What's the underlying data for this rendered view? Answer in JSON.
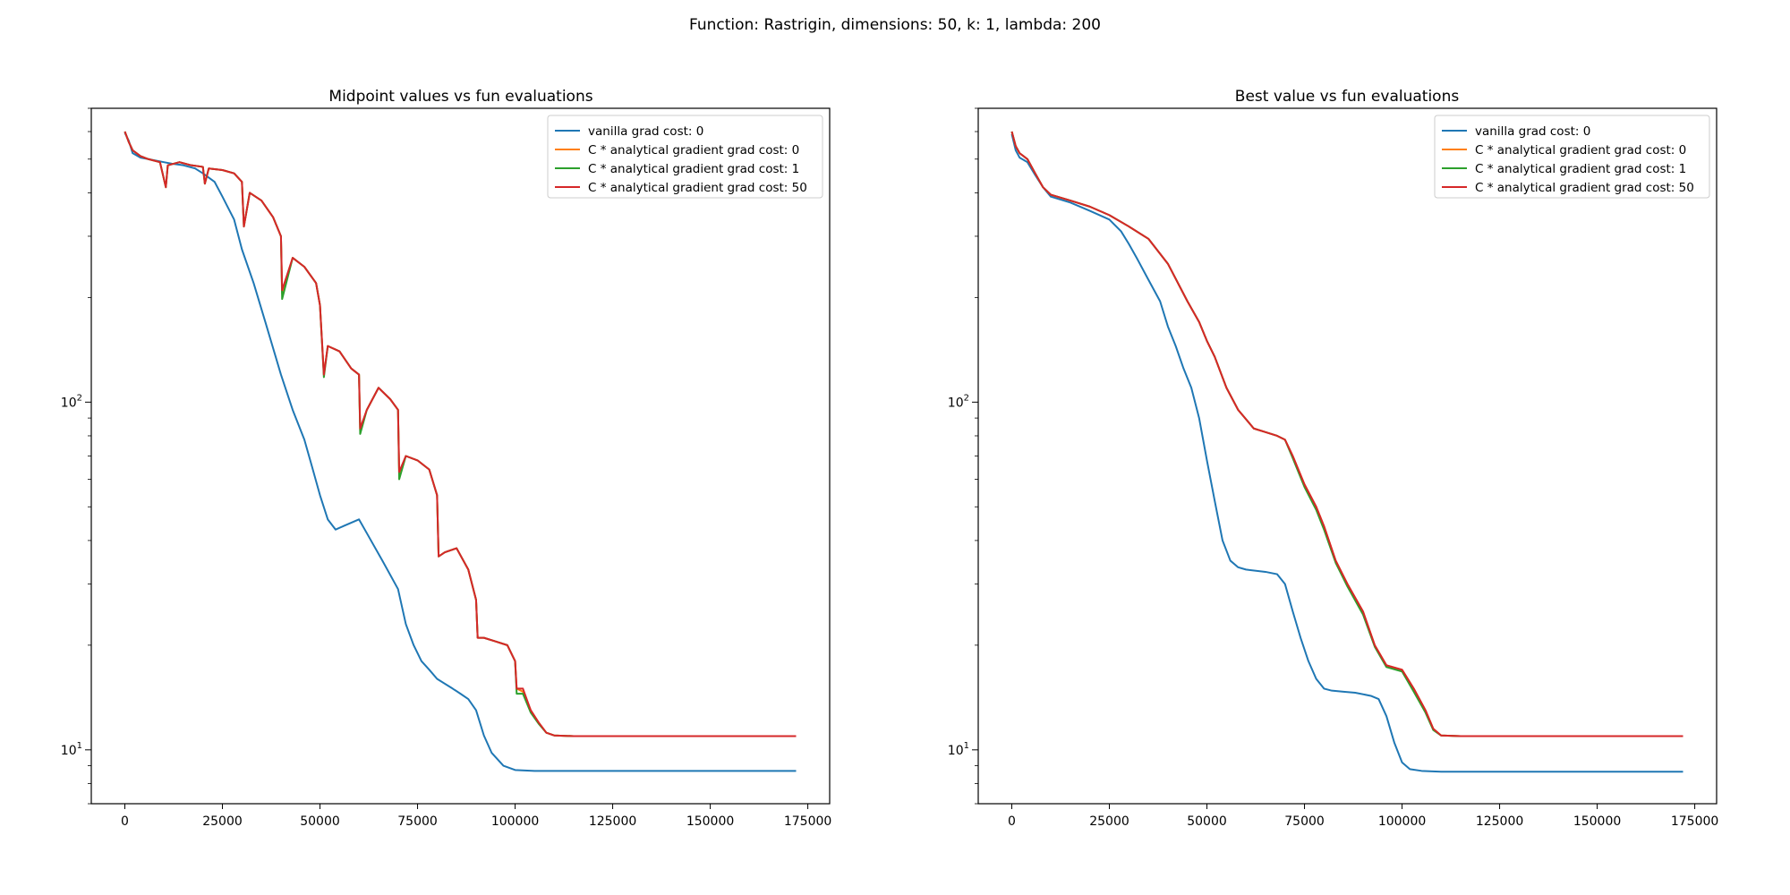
{
  "figure": {
    "suptitle": "Function: Rastrigin, dimensions: 50, k: 1, lambda: 200"
  },
  "chart_data": [
    {
      "type": "line",
      "title": "Midpoint values vs fun evaluations",
      "xlabel": "",
      "ylabel": "",
      "xlim": [
        -8600,
        180600
      ],
      "ylim": [
        7,
        700
      ],
      "yscale": "log",
      "x_ticks": [
        0,
        25000,
        50000,
        75000,
        100000,
        125000,
        150000,
        175000
      ],
      "x_tick_labels": [
        "0",
        "25000",
        "50000",
        "75000",
        "100000",
        "125000",
        "150000",
        "175000"
      ],
      "y_ticks": [
        10,
        100
      ],
      "y_tick_labels": [
        "10^1",
        "10^2"
      ],
      "legend_position": "top-right",
      "grid": false,
      "series": [
        {
          "name": "vanilla grad cost: 0",
          "color": "#1f77b4",
          "x": [
            0,
            1000,
            2000,
            4000,
            6000,
            8000,
            10000,
            12000,
            15000,
            18000,
            20000,
            23000,
            25000,
            28000,
            30000,
            33000,
            36000,
            40000,
            43000,
            46000,
            48000,
            50000,
            52000,
            54000,
            56000,
            60000,
            62000,
            66000,
            70000,
            72000,
            74000,
            76000,
            78000,
            80000,
            84000,
            86000,
            88000,
            90000,
            92000,
            94000,
            97000,
            100000,
            105000,
            110000,
            125000,
            150000,
            172000
          ],
          "y": [
            595,
            565,
            520,
            505,
            500,
            495,
            490,
            485,
            480,
            470,
            455,
            430,
            390,
            335,
            275,
            220,
            170,
            120,
            95,
            78,
            65,
            54,
            46,
            43,
            44,
            46,
            42,
            35,
            29,
            23,
            20,
            18,
            17,
            16,
            15,
            14.5,
            14,
            13,
            11,
            9.8,
            9.0,
            8.75,
            8.7,
            8.7,
            8.7,
            8.7,
            8.7
          ]
        },
        {
          "name": "C * analytical gradient grad cost: 0",
          "color": "#ff7f0e",
          "x": [
            0,
            1000,
            2000,
            4000,
            6000,
            9000,
            10500,
            11000,
            14000,
            17000,
            20000,
            20500,
            21500,
            25000,
            28000,
            30000,
            30500,
            32000,
            35000,
            38000,
            40000,
            40300,
            43000,
            46000,
            49000,
            50000,
            51000,
            52000,
            55000,
            58000,
            60000,
            60300,
            62000,
            65000,
            68000,
            70000,
            70300,
            72000,
            75000,
            78000,
            80000,
            80400,
            82000,
            85000,
            88000,
            90000,
            90400,
            92000,
            95000,
            98000,
            100000,
            100400,
            102000,
            104000,
            106000,
            108000,
            110000,
            115000,
            125000,
            150000,
            172000
          ],
          "y": [
            600,
            560,
            530,
            510,
            500,
            490,
            415,
            480,
            490,
            480,
            475,
            425,
            470,
            465,
            455,
            430,
            320,
            400,
            380,
            340,
            300,
            205,
            260,
            245,
            220,
            190,
            120,
            145,
            140,
            125,
            120,
            83,
            95,
            110,
            102,
            95,
            62,
            70,
            68,
            64,
            54,
            36,
            37,
            38,
            33,
            27,
            21,
            21,
            20.5,
            20,
            18,
            15,
            14.7,
            13,
            12,
            11.2,
            11.0,
            10.95,
            10.95,
            10.95,
            10.95
          ]
        },
        {
          "name": "C * analytical gradient grad cost: 1",
          "color": "#2ca02c",
          "x": [
            0,
            1000,
            2000,
            4000,
            6000,
            9000,
            10500,
            11000,
            14000,
            17000,
            20000,
            20500,
            21500,
            25000,
            28000,
            30000,
            30500,
            32000,
            35000,
            38000,
            40000,
            40300,
            43000,
            46000,
            49000,
            50000,
            51000,
            52000,
            55000,
            58000,
            60000,
            60300,
            62000,
            65000,
            68000,
            70000,
            70300,
            72000,
            75000,
            78000,
            80000,
            80400,
            82000,
            85000,
            88000,
            90000,
            90400,
            92000,
            95000,
            98000,
            100000,
            100400,
            102000,
            104000,
            106000,
            108000,
            110000,
            115000,
            125000,
            150000,
            172000
          ],
          "y": [
            600,
            560,
            530,
            510,
            500,
            490,
            415,
            480,
            490,
            480,
            475,
            425,
            470,
            465,
            455,
            430,
            320,
            400,
            380,
            340,
            300,
            198,
            260,
            245,
            220,
            190,
            118,
            145,
            140,
            125,
            120,
            81,
            95,
            110,
            102,
            95,
            60,
            70,
            68,
            64,
            54,
            36,
            37,
            38,
            33,
            27,
            21,
            21,
            20.5,
            20,
            18,
            14.5,
            14.5,
            12.8,
            11.9,
            11.2,
            11.0,
            10.95,
            10.95,
            10.95,
            10.95
          ]
        },
        {
          "name": "C * analytical gradient grad cost: 50",
          "color": "#d62728",
          "x": [
            0,
            1000,
            2000,
            4000,
            6000,
            9000,
            10500,
            11000,
            14000,
            17000,
            20000,
            20500,
            21500,
            25000,
            28000,
            30000,
            30500,
            32000,
            35000,
            38000,
            40000,
            40300,
            43000,
            46000,
            49000,
            50000,
            51000,
            52000,
            55000,
            58000,
            60000,
            60300,
            62000,
            65000,
            68000,
            70000,
            70300,
            72000,
            75000,
            78000,
            80000,
            80400,
            82000,
            85000,
            88000,
            90000,
            90400,
            92000,
            95000,
            98000,
            100000,
            100400,
            102000,
            104000,
            106000,
            108000,
            110000,
            115000,
            125000,
            150000,
            172000
          ],
          "y": [
            600,
            560,
            530,
            510,
            500,
            490,
            415,
            480,
            490,
            480,
            475,
            425,
            470,
            465,
            455,
            430,
            320,
            400,
            380,
            340,
            300,
            210,
            260,
            245,
            220,
            190,
            120,
            145,
            140,
            125,
            120,
            84,
            95,
            110,
            102,
            95,
            63,
            70,
            68,
            64,
            54,
            36,
            37,
            38,
            33,
            27,
            21,
            21,
            20.5,
            20,
            18,
            15,
            15,
            13,
            12,
            11.2,
            11.0,
            10.95,
            10.95,
            10.95,
            10.95
          ]
        }
      ]
    },
    {
      "type": "line",
      "title": "Best value vs fun evaluations",
      "xlabel": "",
      "ylabel": "",
      "xlim": [
        -8600,
        180600
      ],
      "ylim": [
        7,
        700
      ],
      "yscale": "log",
      "x_ticks": [
        0,
        25000,
        50000,
        75000,
        100000,
        125000,
        150000,
        175000
      ],
      "x_tick_labels": [
        "0",
        "25000",
        "50000",
        "75000",
        "100000",
        "125000",
        "150000",
        "175000"
      ],
      "y_ticks": [
        10,
        100
      ],
      "y_tick_labels": [
        "10^1",
        "10^2"
      ],
      "legend_position": "top-right",
      "grid": false,
      "series": [
        {
          "name": "vanilla grad cost: 0",
          "color": "#1f77b4",
          "x": [
            0,
            1000,
            2000,
            4000,
            6000,
            8000,
            10000,
            15000,
            20000,
            25000,
            28000,
            30000,
            32000,
            35000,
            38000,
            40000,
            42000,
            44000,
            46000,
            48000,
            50000,
            52000,
            54000,
            56000,
            58000,
            60000,
            65000,
            68000,
            70000,
            72000,
            74000,
            76000,
            78000,
            80000,
            82000,
            85000,
            88000,
            92000,
            94000,
            96000,
            98000,
            100000,
            102000,
            105000,
            110000,
            125000,
            150000,
            172000
          ],
          "y": [
            590,
            530,
            505,
            490,
            450,
            415,
            390,
            375,
            355,
            335,
            310,
            285,
            260,
            225,
            195,
            165,
            145,
            125,
            110,
            90,
            68,
            52,
            40,
            35,
            33.5,
            33,
            32.5,
            32,
            30,
            25,
            21,
            18,
            16,
            15,
            14.8,
            14.7,
            14.6,
            14.3,
            14.0,
            12.5,
            10.5,
            9.2,
            8.8,
            8.7,
            8.65,
            8.65,
            8.65,
            8.65
          ]
        },
        {
          "name": "C * analytical gradient grad cost: 0",
          "color": "#ff7f0e",
          "x": [
            0,
            1000,
            2000,
            4000,
            6000,
            8000,
            10000,
            15000,
            20000,
            25000,
            30000,
            35000,
            40000,
            45000,
            48000,
            50000,
            52000,
            55000,
            58000,
            62000,
            65000,
            68000,
            70000,
            72000,
            75000,
            78000,
            80000,
            83000,
            86000,
            90000,
            93000,
            96000,
            100000,
            103000,
            106000,
            108000,
            110000,
            115000,
            125000,
            150000,
            172000
          ],
          "y": [
            600,
            545,
            520,
            500,
            455,
            415,
            395,
            380,
            365,
            345,
            320,
            295,
            250,
            195,
            170,
            150,
            135,
            110,
            95,
            84,
            82,
            80,
            78,
            70,
            58,
            50,
            44,
            35,
            30,
            25,
            20,
            17.5,
            17,
            15,
            13,
            11.5,
            11.0,
            10.95,
            10.95,
            10.95,
            10.95
          ]
        },
        {
          "name": "C * analytical gradient grad cost: 1",
          "color": "#2ca02c",
          "x": [
            0,
            1000,
            2000,
            4000,
            6000,
            8000,
            10000,
            15000,
            20000,
            25000,
            30000,
            35000,
            40000,
            45000,
            48000,
            50000,
            52000,
            55000,
            58000,
            62000,
            65000,
            68000,
            70000,
            72000,
            75000,
            78000,
            80000,
            83000,
            86000,
            90000,
            93000,
            96000,
            100000,
            103000,
            106000,
            108000,
            110000,
            115000,
            125000,
            150000,
            172000
          ],
          "y": [
            600,
            545,
            520,
            500,
            455,
            415,
            395,
            380,
            365,
            345,
            320,
            295,
            250,
            195,
            170,
            150,
            135,
            110,
            95,
            84,
            82,
            80,
            78,
            69,
            57,
            49,
            43,
            34.5,
            29.5,
            24.5,
            19.8,
            17.3,
            16.8,
            14.7,
            12.8,
            11.4,
            11.0,
            10.95,
            10.95,
            10.95,
            10.95
          ]
        },
        {
          "name": "C * analytical gradient grad cost: 50",
          "color": "#d62728",
          "x": [
            0,
            1000,
            2000,
            4000,
            6000,
            8000,
            10000,
            15000,
            20000,
            25000,
            30000,
            35000,
            40000,
            45000,
            48000,
            50000,
            52000,
            55000,
            58000,
            62000,
            65000,
            68000,
            70000,
            72000,
            75000,
            78000,
            80000,
            83000,
            86000,
            90000,
            93000,
            96000,
            100000,
            103000,
            106000,
            108000,
            110000,
            115000,
            125000,
            150000,
            172000
          ],
          "y": [
            600,
            545,
            520,
            500,
            455,
            415,
            395,
            380,
            365,
            345,
            320,
            295,
            250,
            195,
            170,
            150,
            135,
            110,
            95,
            84,
            82,
            80,
            78,
            70,
            58,
            50,
            44,
            35,
            30,
            25,
            20,
            17.5,
            17,
            15,
            13,
            11.5,
            11.0,
            10.95,
            10.95,
            10.95,
            10.95
          ]
        }
      ]
    }
  ]
}
